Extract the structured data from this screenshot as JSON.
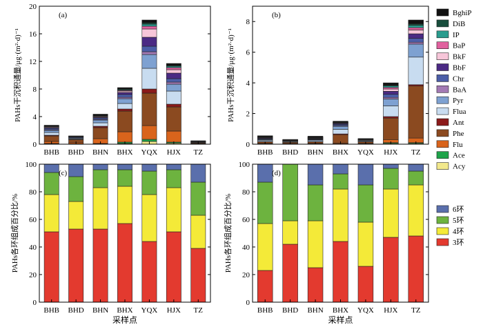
{
  "sites": [
    "BHB",
    "BHD",
    "BHN",
    "BHX",
    "YQX",
    "HJX",
    "TZ"
  ],
  "xlabel": "采样点",
  "ylabel_flux": "PAHs干沉积通量/μg·(m²·d)⁻¹",
  "ylabel_ring": "PAHs各环组成百分比/%",
  "compounds": [
    {
      "name": "Acy",
      "color": "#f2e88c"
    },
    {
      "name": "Ace",
      "color": "#1fa34a"
    },
    {
      "name": "Flu",
      "color": "#d9641c"
    },
    {
      "name": "Phe",
      "color": "#8b4a20"
    },
    {
      "name": "Ant",
      "color": "#8b1a1a"
    },
    {
      "name": "Flua",
      "color": "#c8dcf0"
    },
    {
      "name": "Pyr",
      "color": "#7ea1d1"
    },
    {
      "name": "BaA",
      "color": "#a37ab4"
    },
    {
      "name": "Chr",
      "color": "#4c5ea8"
    },
    {
      "name": "BbF",
      "color": "#4b2a84"
    },
    {
      "name": "BkF",
      "color": "#f7c6d9"
    },
    {
      "name": "BaP",
      "color": "#e0609e"
    },
    {
      "name": "IP",
      "color": "#2a9c8e"
    },
    {
      "name": "DiB",
      "color": "#184d3c"
    },
    {
      "name": "BghiP",
      "color": "#111111"
    }
  ],
  "rings": [
    {
      "name": "3环",
      "color": "#e33a2f"
    },
    {
      "name": "4环",
      "color": "#f4ea38"
    },
    {
      "name": "5环",
      "color": "#6db33f"
    },
    {
      "name": "6环",
      "color": "#5a6fac"
    }
  ],
  "chart_data": [
    {
      "type": "bar",
      "stacked": true,
      "panel_label": "(a)",
      "categories": [
        "BHB",
        "BHD",
        "BHN",
        "BHX",
        "YQX",
        "HJX",
        "TZ"
      ],
      "ylim": [
        0,
        20
      ],
      "yticks": [
        0,
        4,
        8,
        12,
        16,
        20
      ],
      "ylabel": "PAHs干沉积通量/μg·(m²·d)⁻¹",
      "series": [
        {
          "name": "Acy",
          "values": [
            0.05,
            0.03,
            0.05,
            0.1,
            0.4,
            0.15,
            0.02
          ]
        },
        {
          "name": "Ace",
          "values": [
            0.05,
            0.03,
            0.05,
            0.2,
            0.3,
            0.15,
            0.02
          ]
        },
        {
          "name": "Flu",
          "values": [
            0.3,
            0.2,
            0.7,
            1.5,
            2.0,
            1.6,
            0.03
          ]
        },
        {
          "name": "Phe",
          "values": [
            0.8,
            0.4,
            1.6,
            3.0,
            4.7,
            3.5,
            0.1
          ]
        },
        {
          "name": "Ant",
          "values": [
            0.1,
            0.05,
            0.2,
            0.3,
            0.6,
            0.4,
            0.02
          ]
        },
        {
          "name": "Flua",
          "values": [
            0.4,
            0.1,
            0.5,
            0.8,
            3.0,
            1.9,
            0.05
          ]
        },
        {
          "name": "Pyr",
          "values": [
            0.3,
            0.1,
            0.4,
            0.7,
            2.0,
            1.0,
            0.03
          ]
        },
        {
          "name": "BaA",
          "values": [
            0.1,
            0.03,
            0.1,
            0.2,
            0.4,
            0.3,
            0.02
          ]
        },
        {
          "name": "Chr",
          "values": [
            0.2,
            0.1,
            0.2,
            0.4,
            0.8,
            0.5,
            0.04
          ]
        },
        {
          "name": "BbF",
          "values": [
            0.1,
            0.03,
            0.1,
            0.3,
            1.3,
            0.8,
            0.03
          ]
        },
        {
          "name": "BkF",
          "values": [
            0.1,
            0.03,
            0.1,
            0.2,
            1.2,
            0.5,
            0.03
          ]
        },
        {
          "name": "BaP",
          "values": [
            0.05,
            0.03,
            0.05,
            0.1,
            0.4,
            0.3,
            0.02
          ]
        },
        {
          "name": "IP",
          "values": [
            0.05,
            0.03,
            0.05,
            0.1,
            0.3,
            0.2,
            0.02
          ]
        },
        {
          "name": "DiB",
          "values": [
            0.05,
            0.02,
            0.05,
            0.1,
            0.2,
            0.1,
            0.01
          ]
        },
        {
          "name": "BghiP",
          "values": [
            0.1,
            0.02,
            0.2,
            0.2,
            0.4,
            0.3,
            0.06
          ]
        }
      ]
    },
    {
      "type": "bar",
      "stacked": true,
      "panel_label": "(b)",
      "categories": [
        "BHB",
        "BHD",
        "BHN",
        "BHX",
        "YQX",
        "HJX",
        "TZ"
      ],
      "ylim": [
        0,
        9
      ],
      "yticks": [
        0,
        2,
        4,
        6,
        8
      ],
      "series": [
        {
          "name": "Acy",
          "values": [
            0.01,
            0.01,
            0.01,
            0.01,
            0.01,
            0.05,
            0.05
          ]
        },
        {
          "name": "Ace",
          "values": [
            0.01,
            0.01,
            0.01,
            0.01,
            0.01,
            0.05,
            0.05
          ]
        },
        {
          "name": "Flu",
          "values": [
            0.03,
            0.02,
            0.03,
            0.05,
            0.03,
            0.2,
            0.3
          ]
        },
        {
          "name": "Phe",
          "values": [
            0.1,
            0.08,
            0.1,
            0.55,
            0.1,
            1.4,
            3.4
          ]
        },
        {
          "name": "Ant",
          "values": [
            0.02,
            0.01,
            0.02,
            0.05,
            0.02,
            0.1,
            0.08
          ]
        },
        {
          "name": "Flua",
          "values": [
            0.08,
            0.04,
            0.07,
            0.3,
            0.05,
            0.7,
            1.8
          ]
        },
        {
          "name": "Pyr",
          "values": [
            0.05,
            0.03,
            0.05,
            0.2,
            0.03,
            0.45,
            0.85
          ]
        },
        {
          "name": "BaA",
          "values": [
            0.02,
            0.01,
            0.02,
            0.04,
            0.01,
            0.1,
            0.12
          ]
        },
        {
          "name": "Chr",
          "values": [
            0.04,
            0.02,
            0.03,
            0.08,
            0.02,
            0.2,
            0.25
          ]
        },
        {
          "name": "BbF",
          "values": [
            0.04,
            0.01,
            0.03,
            0.05,
            0.02,
            0.2,
            0.3
          ]
        },
        {
          "name": "BkF",
          "values": [
            0.02,
            0.01,
            0.02,
            0.03,
            0.01,
            0.15,
            0.25
          ]
        },
        {
          "name": "BaP",
          "values": [
            0.02,
            0.01,
            0.02,
            0.02,
            0.01,
            0.1,
            0.15
          ]
        },
        {
          "name": "IP",
          "values": [
            0.02,
            0.01,
            0.02,
            0.02,
            0.01,
            0.1,
            0.15
          ]
        },
        {
          "name": "DiB",
          "values": [
            0.02,
            0.01,
            0.02,
            0.02,
            0.01,
            0.05,
            0.1
          ]
        },
        {
          "name": "BghiP",
          "values": [
            0.07,
            0.03,
            0.07,
            0.07,
            0.03,
            0.15,
            0.25
          ]
        }
      ]
    },
    {
      "type": "bar",
      "stacked": true,
      "panel_label": "(c)",
      "categories": [
        "BHB",
        "BHD",
        "BHN",
        "BHX",
        "YQX",
        "HJX",
        "TZ"
      ],
      "ylim": [
        0,
        100
      ],
      "yticks": [
        0,
        20,
        40,
        60,
        80,
        100
      ],
      "xlabel": "采样点",
      "ylabel": "PAHs各环组成百分比/%",
      "series": [
        {
          "name": "3环",
          "values": [
            51,
            53,
            53,
            57,
            44,
            51,
            39
          ]
        },
        {
          "name": "4环",
          "values": [
            27,
            20,
            30,
            27,
            34,
            32,
            24
          ]
        },
        {
          "name": "5环",
          "values": [
            16,
            18,
            13,
            12,
            17,
            13,
            24
          ]
        },
        {
          "name": "6环",
          "values": [
            6,
            9,
            4,
            4,
            5,
            4,
            13
          ]
        }
      ]
    },
    {
      "type": "bar",
      "stacked": true,
      "panel_label": "(d)",
      "categories": [
        "BHB",
        "BHD",
        "BHN",
        "BHX",
        "YQX",
        "HJX",
        "TZ"
      ],
      "ylim": [
        0,
        100
      ],
      "yticks": [
        0,
        20,
        40,
        60,
        80,
        100
      ],
      "xlabel": "采样点",
      "ylabel": "PAHs各环组成百分比/%",
      "series": [
        {
          "name": "3环",
          "values": [
            23,
            42,
            25,
            44,
            26,
            47,
            48
          ]
        },
        {
          "name": "4环",
          "values": [
            34,
            17,
            34,
            38,
            32,
            35,
            37
          ]
        },
        {
          "name": "5环",
          "values": [
            30,
            41,
            26,
            11,
            27,
            15,
            10
          ]
        },
        {
          "name": "6环",
          "values": [
            13,
            0,
            15,
            7,
            15,
            3,
            5
          ]
        }
      ]
    }
  ]
}
